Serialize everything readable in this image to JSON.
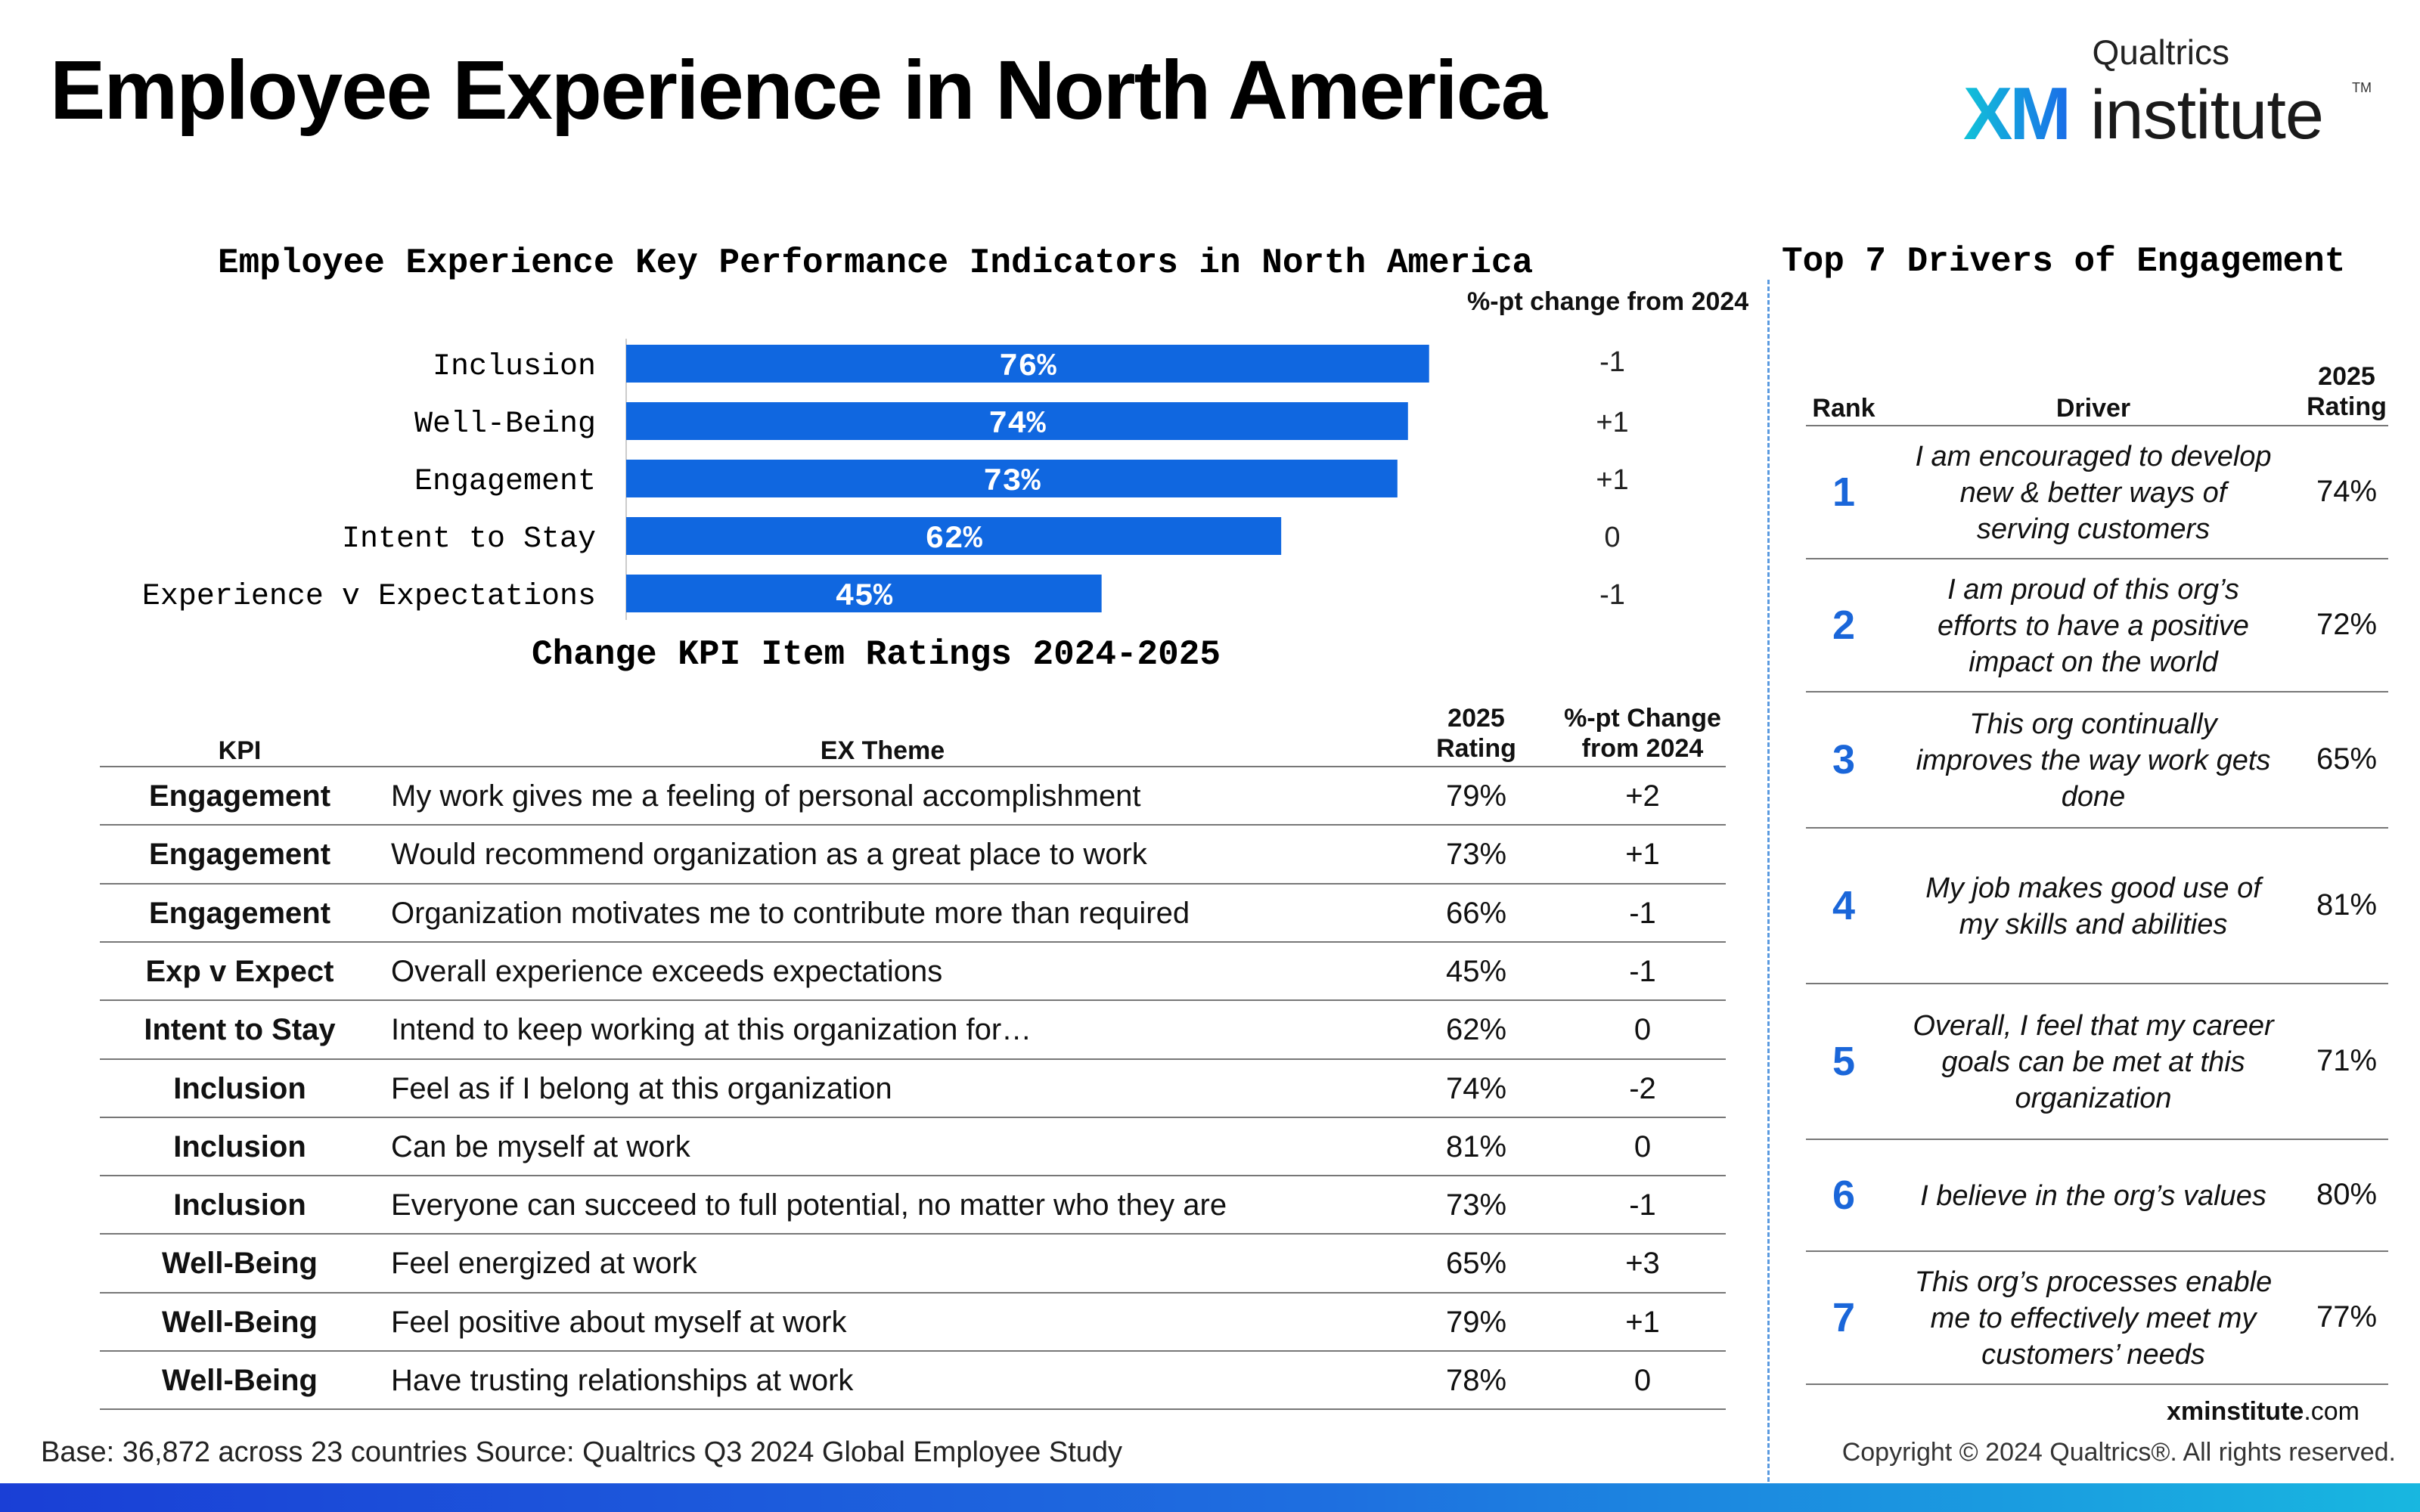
{
  "page": {
    "title": "Employee Experience in North America",
    "logo_brand": "Qualtrics",
    "logo_xm": "XM",
    "logo_institute": "institute",
    "logo_tm": "TM"
  },
  "colors": {
    "bar": "#1067e0",
    "rank": "#1a66d9",
    "divider": "#5a9ae0"
  },
  "chart_data": {
    "type": "bar",
    "orientation": "horizontal",
    "title": "Employee Experience Key Performance Indicators in North America",
    "categories": [
      "Inclusion",
      "Well-Being",
      "Engagement",
      "Intent to Stay",
      "Experience v Expectations"
    ],
    "values": [
      76,
      74,
      73,
      62,
      45
    ],
    "value_labels": [
      "76%",
      "74%",
      "73%",
      "62%",
      "45%"
    ],
    "change_header": "%-pt change from 2024",
    "changes": [
      "-1",
      "+1",
      "+1",
      "0",
      "-1"
    ],
    "xlim": [
      0,
      100
    ]
  },
  "kpi_table": {
    "title": "Change KPI Item Ratings 2024-2025",
    "headers": {
      "kpi": "KPI",
      "theme": "EX Theme",
      "rating_1": "2025",
      "rating_2": "Rating",
      "change_1": "%-pt Change",
      "change_2": "from 2024"
    },
    "rows": [
      {
        "kpi": "Engagement",
        "theme": "My work gives me a feeling of personal accomplishment",
        "rating": "79%",
        "change": "+2"
      },
      {
        "kpi": "Engagement",
        "theme": "Would recommend organization as a great place to work",
        "rating": "73%",
        "change": "+1"
      },
      {
        "kpi": "Engagement",
        "theme": "Organization motivates me to contribute more than required",
        "rating": "66%",
        "change": "-1"
      },
      {
        "kpi": "Exp v Expect",
        "theme": "Overall experience exceeds expectations",
        "rating": "45%",
        "change": "-1"
      },
      {
        "kpi": "Intent to Stay",
        "theme": "Intend to keep working at this organization for…",
        "rating": "62%",
        "change": "0"
      },
      {
        "kpi": "Inclusion",
        "theme": "Feel as if I belong at this organization",
        "rating": "74%",
        "change": "-2"
      },
      {
        "kpi": "Inclusion",
        "theme": "Can be myself at work",
        "rating": "81%",
        "change": "0"
      },
      {
        "kpi": "Inclusion",
        "theme": "Everyone can succeed to full potential, no matter who they are",
        "rating": "73%",
        "change": "-1"
      },
      {
        "kpi": "Well-Being",
        "theme": "Feel energized at work",
        "rating": "65%",
        "change": "+3"
      },
      {
        "kpi": "Well-Being",
        "theme": "Feel positive about myself at work",
        "rating": "79%",
        "change": "+1"
      },
      {
        "kpi": "Well-Being",
        "theme": "Have trusting relationships at work",
        "rating": "78%",
        "change": "0"
      }
    ]
  },
  "drivers": {
    "title": "Top 7 Drivers of Engagement",
    "headers": {
      "rank": "Rank",
      "driver": "Driver",
      "rating_1": "2025",
      "rating_2": "Rating"
    },
    "rows": [
      {
        "rank": "1",
        "lines": [
          "I am encouraged to develop",
          "new & better ways of",
          "serving customers"
        ],
        "rating": "74%"
      },
      {
        "rank": "2",
        "lines": [
          "I am proud of this org’s",
          "efforts to have a positive",
          "impact on the world"
        ],
        "rating": "72%"
      },
      {
        "rank": "3",
        "lines": [
          "This org continually",
          "improves the way work gets",
          "done"
        ],
        "rating": "65%"
      },
      {
        "rank": "4",
        "lines": [
          "My job makes good use of",
          "my skills and abilities"
        ],
        "rating": "81%"
      },
      {
        "rank": "5",
        "lines": [
          "Overall, I feel that my career",
          "goals can be met at this",
          "organization"
        ],
        "rating": "71%"
      },
      {
        "rank": "6",
        "lines": [
          "I believe in the org’s values"
        ],
        "rating": "80%"
      },
      {
        "rank": "7",
        "lines": [
          "This org’s processes enable",
          "me to effectively meet my",
          "customers’ needs"
        ],
        "rating": "77%"
      }
    ]
  },
  "footer": {
    "base_label": "Base:",
    "base_text": " 36,872 across 23 countries ",
    "source_label": "Source:",
    "source_text": " Qualtrics Q3 2024 Global Employee Study",
    "site_bold": "xminstitute",
    "site_rest": ".com",
    "copyright": "Copyright © 2024 Qualtrics®. All rights reserved."
  }
}
